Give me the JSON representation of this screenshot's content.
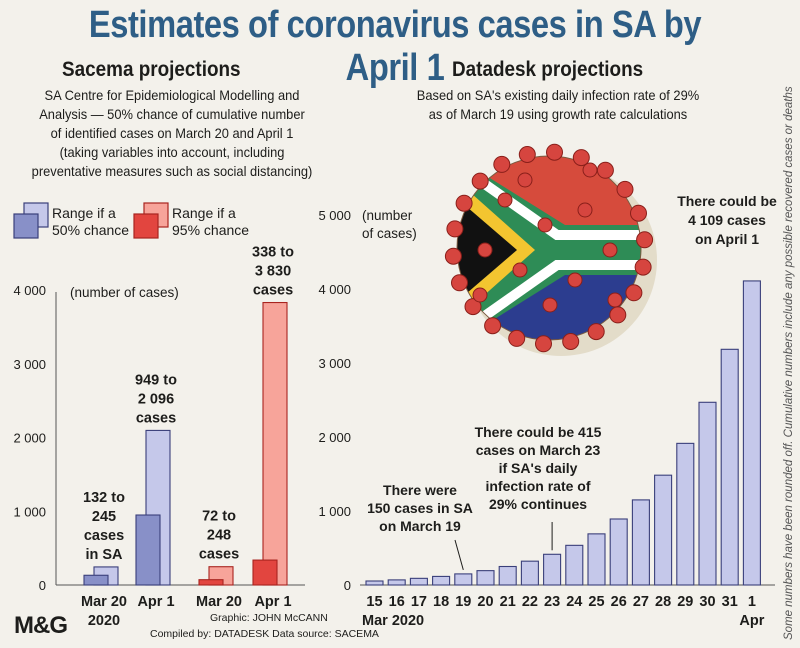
{
  "title": "Estimates of coronavirus cases in SA by April 1",
  "left": {
    "heading": "Sacema projections",
    "description": [
      "SA Centre for Epidemiological Modelling and",
      "Analysis — 50% chance of cumulative number",
      "of identified cases on March 20 and April 1",
      "(taking variables into account, including",
      "preventative measures such as social distancing)"
    ],
    "legend_50": [
      "Range if a",
      "50% chance"
    ],
    "legend_95": [
      "Range if a",
      "95% chance"
    ],
    "y_unit": "(number of cases)",
    "labels": {
      "b50_mar20": [
        "132 to",
        "245",
        "cases",
        "in SA"
      ],
      "b50_apr1": [
        "949 to",
        "2 096",
        "cases"
      ],
      "b95_mar20": [
        "72 to",
        "248",
        "cases"
      ],
      "b95_apr1": [
        "338 to",
        "3 830",
        "cases"
      ]
    },
    "xlabels": [
      [
        "Mar 20",
        "2020"
      ],
      [
        "Apr 1"
      ],
      [
        "Mar 20"
      ],
      [
        "Apr 1"
      ]
    ]
  },
  "right": {
    "heading": "Datadesk projections",
    "description": [
      "Based on SA's existing daily infection rate of 29%",
      "as of March 19 using growth rate calculations"
    ],
    "y_unit": [
      "(number",
      "of cases)"
    ],
    "annotations": {
      "mar19": [
        "There were",
        "150 cases in SA",
        "on March 19"
      ],
      "mar23": [
        "There could be 415",
        "cases on March 23",
        "if SA's daily",
        "infection rate of",
        "29% continues"
      ],
      "apr1": [
        "There could be",
        "4 109 cases",
        "on April 1"
      ]
    },
    "xlabel_year": "Mar 2020",
    "xlabel_apr": "Apr"
  },
  "credits": {
    "logo": "M&G",
    "graphic": "Graphic: JOHN McCANN",
    "compiled": "Compiled by: DATADESK  Data source: SACEMA"
  },
  "side_note": "Some numbers have been rounded off. Cumulative numbers include any possible recovered cases or deaths",
  "colors": {
    "title": "#2e5e86",
    "blue_light": "#c5c8ea",
    "blue_dark": "#8890c8",
    "blue_edge": "#3a3f7a",
    "red_light": "#f7a49a",
    "red_dark": "#e2453f",
    "red_edge": "#a8241f"
  },
  "chart_data": [
    {
      "type": "bar",
      "title": "Sacema projections",
      "ylabel": "(number of cases)",
      "ylim": [
        0,
        4000
      ],
      "yticks": [
        "0",
        "1 000",
        "2 000",
        "3 000",
        "4 000"
      ],
      "categories": [
        "Mar 20",
        "Apr 1",
        "Mar 20",
        "Apr 1"
      ],
      "series": [
        {
          "name": "Range if a 50% chance",
          "ranges": [
            [
              132,
              245
            ],
            [
              949,
              2096
            ]
          ]
        },
        {
          "name": "Range if a 95% chance",
          "ranges": [
            [
              72,
              248
            ],
            [
              338,
              3830
            ]
          ]
        }
      ]
    },
    {
      "type": "bar",
      "title": "Datadesk projections",
      "ylabel": "(number of cases)",
      "ylim": [
        0,
        5000
      ],
      "yticks": [
        "0",
        "1 000",
        "2 000",
        "3 000",
        "4 000",
        "5 000"
      ],
      "categories": [
        "15",
        "16",
        "17",
        "18",
        "19",
        "20",
        "21",
        "22",
        "23",
        "24",
        "25",
        "26",
        "27",
        "28",
        "29",
        "30",
        "31",
        "1"
      ],
      "values": [
        54,
        69,
        90,
        116,
        150,
        194,
        250,
        322,
        415,
        536,
        691,
        892,
        1150,
        1484,
        1914,
        2469,
        3185,
        4109
      ]
    }
  ]
}
